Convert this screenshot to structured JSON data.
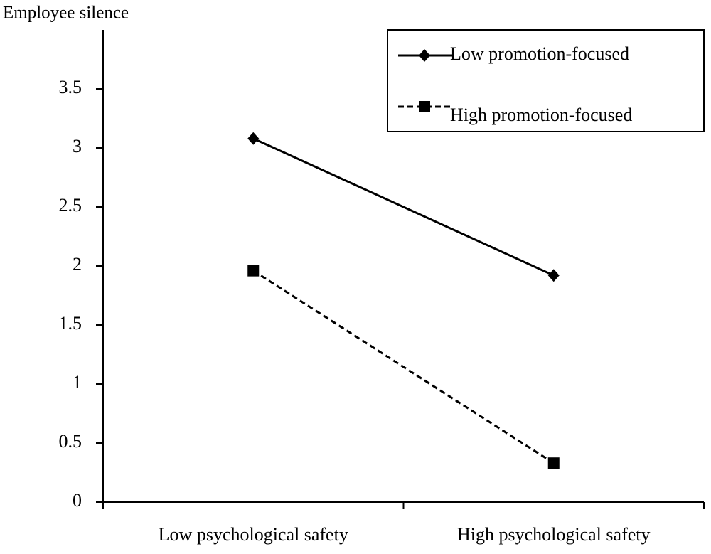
{
  "chart_data": {
    "type": "line",
    "title": "Employee silence",
    "categories": [
      "Low psychological safety",
      "High psychological safety"
    ],
    "series": [
      {
        "name": "Low promotion-focused",
        "color": "#000000",
        "linestyle": "solid",
        "marker": "diamond",
        "values": [
          3.08,
          1.92
        ]
      },
      {
        "name": "High promotion-focused",
        "color": "#000000",
        "linestyle": "dashed",
        "marker": "square",
        "values": [
          1.96,
          0.33
        ]
      }
    ],
    "ylim": [
      0,
      4
    ],
    "yticks": [
      0,
      0.5,
      1,
      1.5,
      2,
      2.5,
      3,
      3.5
    ],
    "grid": false,
    "legend": "upper right"
  }
}
